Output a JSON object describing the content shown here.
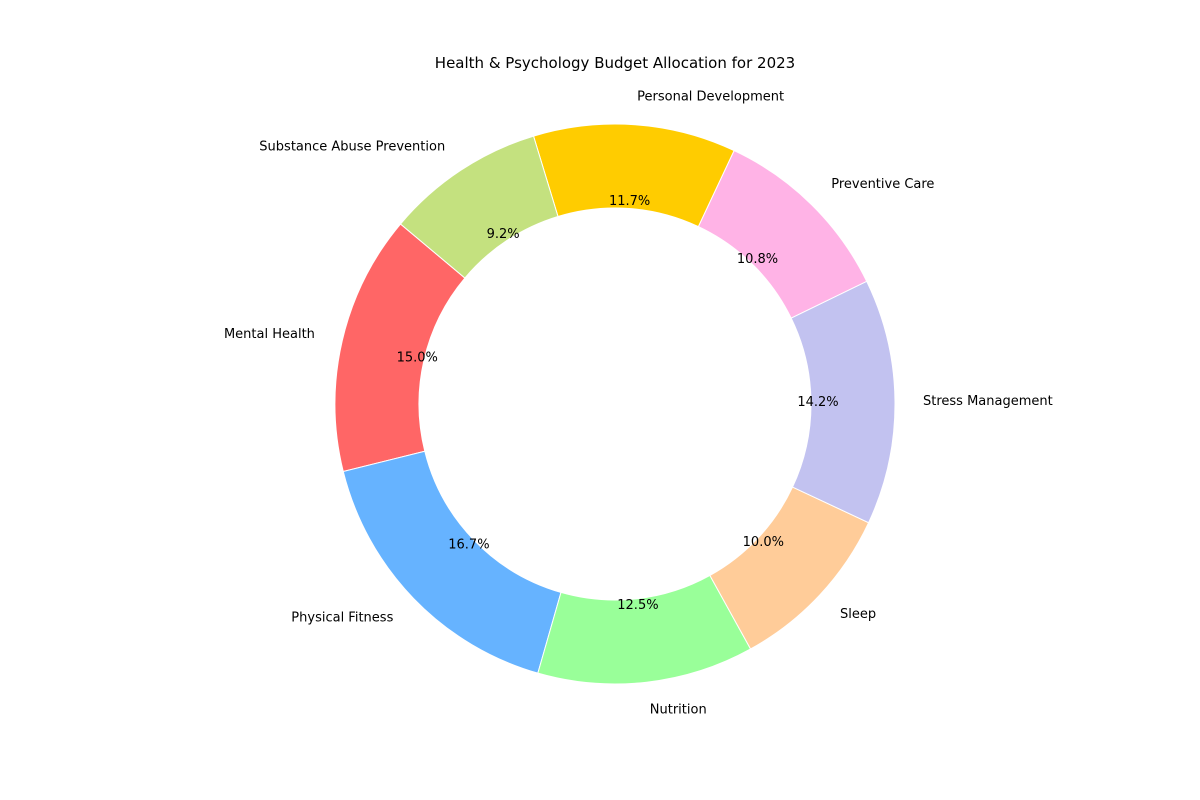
{
  "chart_data": {
    "type": "pie",
    "style": "donut",
    "title": "Health & Psychology Budget Allocation for 2023",
    "categories": [
      "Mental Health",
      "Physical Fitness",
      "Nutrition",
      "Sleep",
      "Stress Management",
      "Preventive Care",
      "Personal Development",
      "Substance Abuse Prevention"
    ],
    "values": [
      15.0,
      16.7,
      12.5,
      10.0,
      14.2,
      10.8,
      11.7,
      9.2
    ],
    "percent_labels": [
      "15.0%",
      "16.7%",
      "12.5%",
      "10.0%",
      "14.2%",
      "10.8%",
      "11.7%",
      "9.2%"
    ],
    "colors": [
      "#ff6666",
      "#66b3ff",
      "#99ff99",
      "#ffcc99",
      "#c2c2f0",
      "#ffb3e6",
      "#ffcc00",
      "#c4e17f"
    ],
    "start_angle_deg": 140,
    "direction": "counterclockwise",
    "legend": "none"
  }
}
